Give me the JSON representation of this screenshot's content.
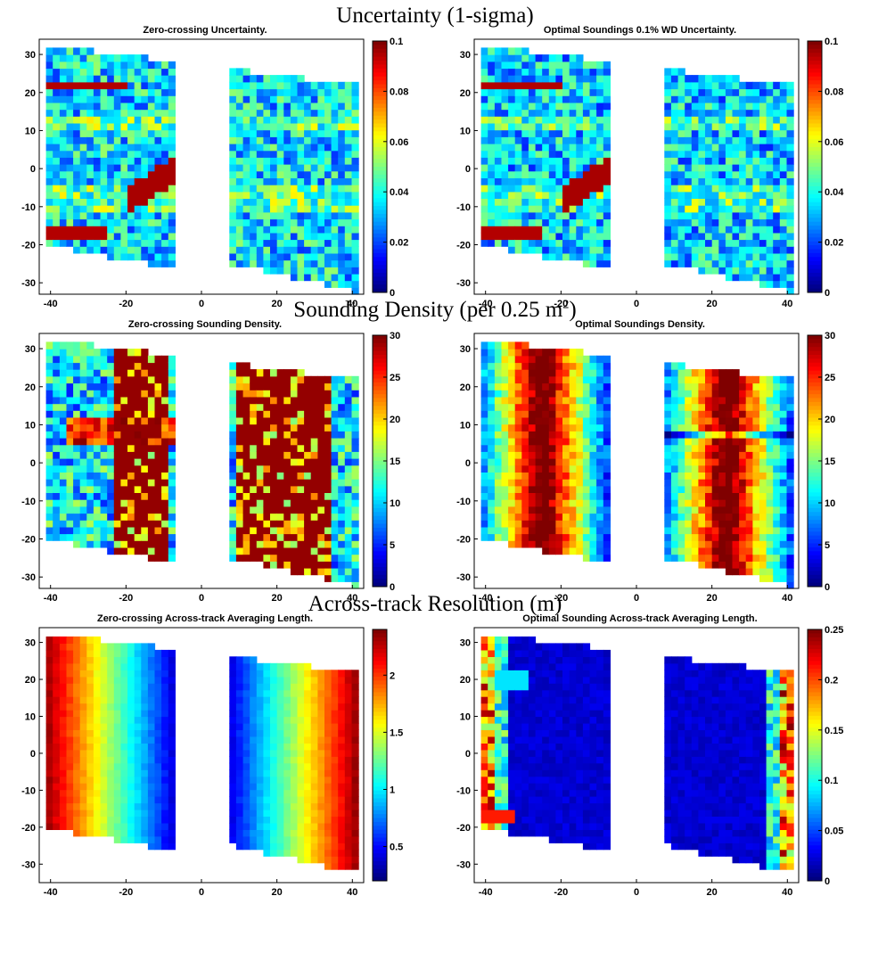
{
  "sections": [
    {
      "title": "Uncertainty (1-sigma)",
      "sup": ""
    },
    {
      "title": "Sounding Density (per 0.25 m",
      "sup": "2",
      "tail": ")"
    },
    {
      "title": "Across-track Resolution (m)",
      "sup": ""
    }
  ],
  "colors": {
    "low": "#00008f",
    "mid": "#40c0e0",
    "high": "#7f0000"
  },
  "chart_data": [
    {
      "type": "heatmap",
      "title": "Zero-crossing Uncertainty.",
      "xlim": [
        -43,
        43
      ],
      "ylim": [
        -33,
        34
      ],
      "xticks": [
        -40,
        -20,
        0,
        20,
        40
      ],
      "yticks": [
        30,
        20,
        10,
        0,
        -10,
        -20,
        -30
      ],
      "colorbar": {
        "min": 0,
        "max": 0.1,
        "ticks": [
          "0.1",
          "0.08",
          "0.06",
          "0.04",
          "0.02",
          "0"
        ]
      },
      "pattern": "uncertainty",
      "base_level": 0.35
    },
    {
      "type": "heatmap",
      "title": "Optimal Soundings 0.1% WD Uncertainty.",
      "xlim": [
        -43,
        43
      ],
      "ylim": [
        -33,
        34
      ],
      "xticks": [
        -40,
        -20,
        0,
        20,
        40
      ],
      "yticks": [
        30,
        20,
        10,
        0,
        -10,
        -20,
        -30
      ],
      "colorbar": {
        "min": 0,
        "max": 0.1,
        "ticks": [
          "0.1",
          "0.08",
          "0.06",
          "0.04",
          "0.02",
          "0"
        ]
      },
      "pattern": "uncertainty",
      "base_level": 0.33
    },
    {
      "type": "heatmap",
      "title": "Zero-crossing Sounding Density.",
      "xlim": [
        -43,
        43
      ],
      "ylim": [
        -33,
        34
      ],
      "xticks": [
        -40,
        -20,
        0,
        20,
        40
      ],
      "yticks": [
        30,
        20,
        10,
        0,
        -10,
        -20,
        -30
      ],
      "colorbar": {
        "min": 0,
        "max": 30,
        "ticks": [
          "30",
          "25",
          "20",
          "15",
          "10",
          "5",
          "0"
        ]
      },
      "pattern": "density_zc"
    },
    {
      "type": "heatmap",
      "title": "Optimal Soundings Density.",
      "xlim": [
        -43,
        43
      ],
      "ylim": [
        -33,
        34
      ],
      "xticks": [
        -40,
        -20,
        0,
        20,
        40
      ],
      "yticks": [
        30,
        20,
        10,
        0,
        -10,
        -20,
        -30
      ],
      "colorbar": {
        "min": 0,
        "max": 30,
        "ticks": [
          "30",
          "25",
          "20",
          "15",
          "10",
          "5",
          "0"
        ]
      },
      "pattern": "density_opt"
    },
    {
      "type": "heatmap",
      "title": "Zero-crossing Across-track Averaging Length.",
      "xlim": [
        -43,
        43
      ],
      "ylim": [
        -35,
        34
      ],
      "xticks": [
        -40,
        -20,
        0,
        20,
        40
      ],
      "yticks": [
        30,
        20,
        10,
        0,
        -10,
        -20,
        -30
      ],
      "colorbar": {
        "min": 0.2,
        "max": 2.4,
        "ticks": [
          "2",
          "1.5",
          "1",
          "0.5"
        ]
      },
      "pattern": "res_zc"
    },
    {
      "type": "heatmap",
      "title": "Optimal Sounding Across-track Averaging Length.",
      "xlim": [
        -43,
        43
      ],
      "ylim": [
        -35,
        34
      ],
      "xticks": [
        -40,
        -20,
        0,
        20,
        40
      ],
      "yticks": [
        30,
        20,
        10,
        0,
        -10,
        -20,
        -30
      ],
      "colorbar": {
        "min": 0,
        "max": 0.25,
        "ticks": [
          "0.25",
          "0.2",
          "0.15",
          "0.1",
          "0.05",
          "0"
        ]
      },
      "pattern": "res_opt"
    }
  ]
}
